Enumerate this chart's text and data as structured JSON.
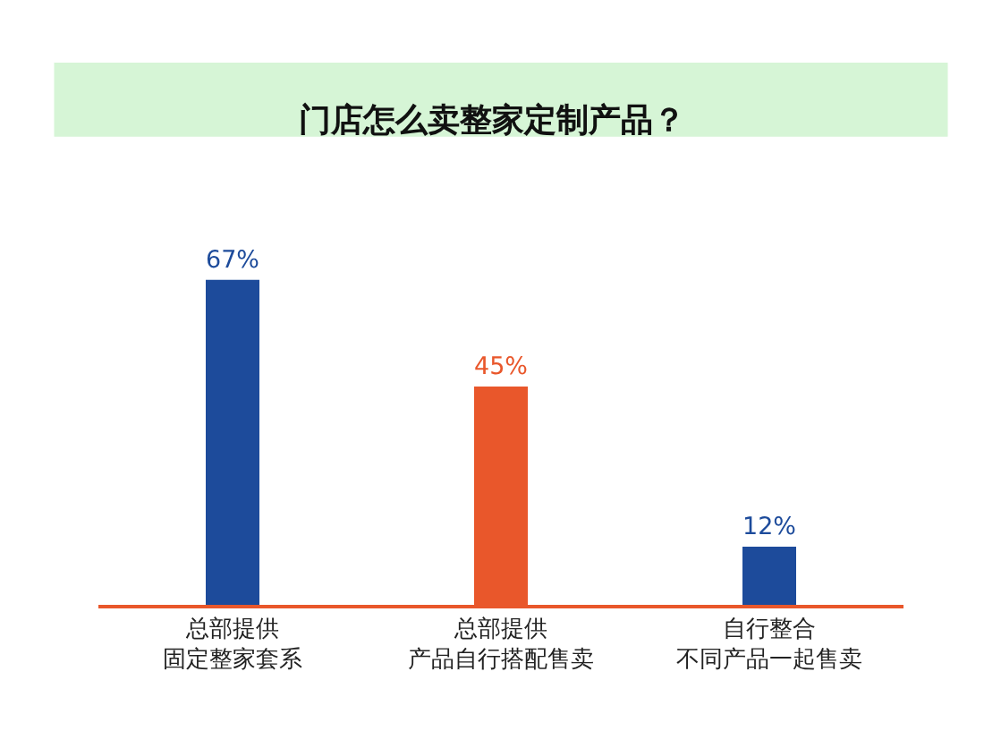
{
  "chart_data": {
    "type": "bar",
    "title": "门店怎么卖整家定制产品？",
    "categories": [
      "总部提供固定整家套系",
      "总部提供产品自行搭配售卖",
      "自行整合不同产品一起售卖"
    ],
    "values": [
      67,
      45,
      12
    ],
    "colors": [
      "#1d4b9b",
      "#e9572b",
      "#1d4b9b"
    ],
    "value_labels": [
      "67%",
      "45%",
      "12%"
    ],
    "legend": false
  }
}
